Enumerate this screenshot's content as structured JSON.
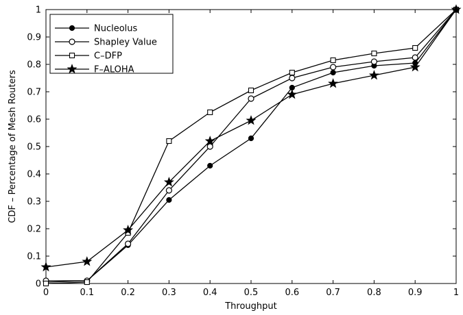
{
  "chart_data": {
    "type": "line",
    "xlabel": "Throughput",
    "ylabel": "CDF – Percentage of Mesh Routers",
    "xlim": [
      0,
      1
    ],
    "ylim": [
      0,
      1
    ],
    "xticks": [
      "0",
      "0.1",
      "0.2",
      "0.3",
      "0.4",
      "0.5",
      "0.6",
      "0.7",
      "0.8",
      "0.9",
      "1"
    ],
    "yticks": [
      "0",
      "0.1",
      "0.2",
      "0.3",
      "0.4",
      "0.5",
      "0.6",
      "0.7",
      "0.8",
      "0.9",
      "1"
    ],
    "grid": false,
    "legend_position": "top-left",
    "x": [
      0,
      0.1,
      0.2,
      0.3,
      0.4,
      0.5,
      0.6,
      0.7,
      0.8,
      0.9,
      1.0
    ],
    "series": [
      {
        "name": "Nucleolus",
        "marker": "filled-circle",
        "color": "#000000",
        "values": [
          0.005,
          0.01,
          0.14,
          0.305,
          0.43,
          0.53,
          0.715,
          0.77,
          0.795,
          0.805,
          1.0
        ]
      },
      {
        "name": "Shapley Value",
        "marker": "open-circle",
        "color": "#000000",
        "values": [
          0.01,
          0.01,
          0.145,
          0.34,
          0.5,
          0.675,
          0.75,
          0.79,
          0.81,
          0.825,
          1.0
        ]
      },
      {
        "name": "C–DFP",
        "marker": "open-square",
        "color": "#000000",
        "values": [
          0.0,
          0.005,
          0.185,
          0.52,
          0.625,
          0.705,
          0.77,
          0.815,
          0.84,
          0.86,
          1.0
        ]
      },
      {
        "name": "F–ALOHA",
        "marker": "star",
        "color": "#000000",
        "values": [
          0.06,
          0.08,
          0.195,
          0.37,
          0.52,
          0.595,
          0.69,
          0.73,
          0.76,
          0.79,
          1.0
        ]
      }
    ]
  }
}
